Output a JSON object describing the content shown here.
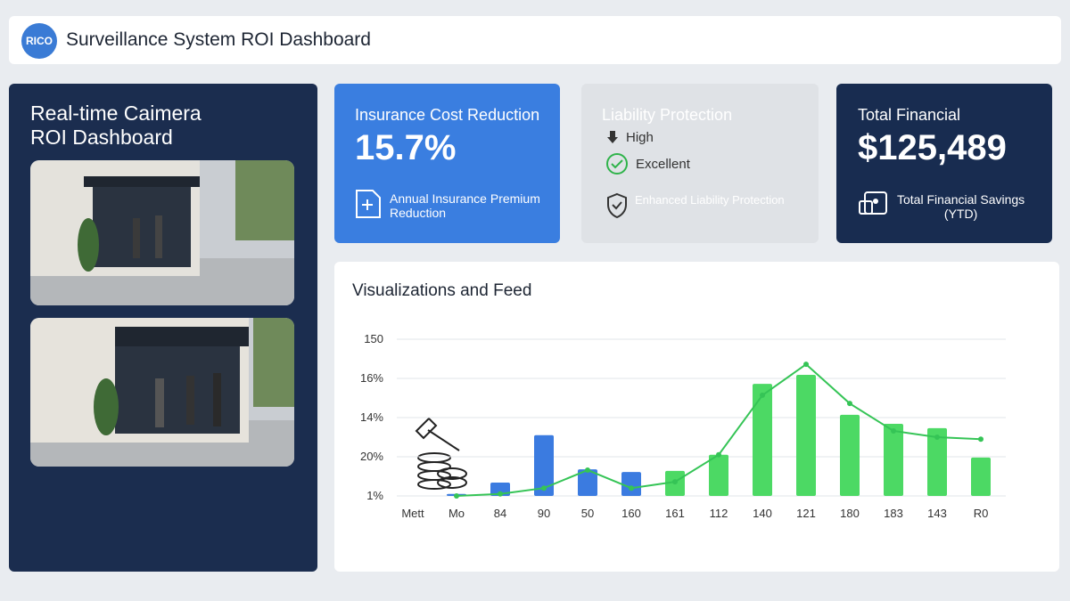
{
  "header": {
    "logo": "RICO",
    "title": "Surveillance System ROI Dashboard"
  },
  "camera_panel": {
    "title_lines": [
      "Real-time Caimera",
      "ROI Dashboard"
    ]
  },
  "cards": [
    {
      "title": "Insurance Cost Reduction",
      "value": "15.7%",
      "caption": "Annual Insurance Premium Reduction"
    },
    {
      "title": "Liability Protection",
      "items": [
        "High",
        "Excellent",
        "Enhanced Liability Protection"
      ]
    },
    {
      "title": "Total Financial",
      "value": "$125,489",
      "caption_lines": [
        "Total Financial Savings",
        "(YTD)"
      ]
    }
  ],
  "chart": {
    "type": "bar",
    "title": "Visualizations and Feed",
    "categories": [
      "Mett",
      "Mo",
      "84",
      "90",
      "50",
      "160",
      "161",
      "112",
      "140",
      "121",
      "180",
      "183",
      "143",
      "R0"
    ],
    "bars": {
      "values": [
        null,
        0.05,
        0.34,
        1.55,
        0.68,
        0.61,
        0.64,
        1.05,
        2.86,
        3.09,
        2.07,
        1.84,
        1.73,
        0.98
      ],
      "colors": [
        "#3b7be0",
        "#3b7be0",
        "#3b7be0",
        "#3b7be0",
        "#3b7be0",
        "#3b7be0",
        "#4cd964",
        "#4cd964",
        "#4cd964",
        "#4cd964",
        "#4cd964",
        "#4cd964",
        "#4cd964",
        "#4cd964"
      ]
    },
    "line": {
      "values": [
        null,
        0,
        0.05,
        0.2,
        0.66,
        0.2,
        0.36,
        1.05,
        2.57,
        3.36,
        2.36,
        1.66,
        1.5,
        1.45
      ],
      "color": "#35c456"
    },
    "ylim": [
      0,
      4
    ],
    "yticks": [
      {
        "value": 0,
        "label": "1%"
      },
      {
        "value": 1,
        "label": "20%"
      },
      {
        "value": 2,
        "label": "14%"
      },
      {
        "value": 3,
        "label": "16%"
      },
      {
        "value": 4,
        "label": "150"
      }
    ],
    "grid": true
  }
}
